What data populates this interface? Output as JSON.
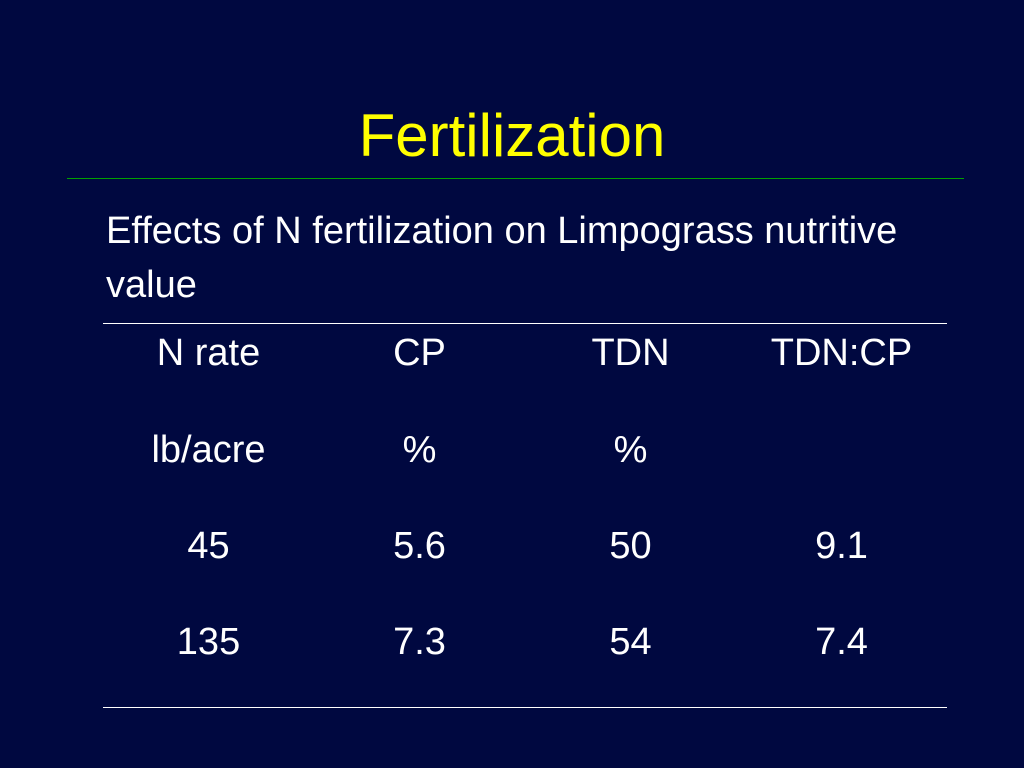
{
  "slide": {
    "title": "Fertilization",
    "subtitle": "Effects of N fertilization on Limpograss nutritive value",
    "colors": {
      "background": "#000840",
      "title": "#ffff00",
      "title_rule": "#00a000",
      "text": "#ffffff"
    }
  },
  "table": {
    "headers": [
      "N rate",
      "CP",
      "TDN",
      "TDN:CP"
    ],
    "units": [
      "lb/acre",
      "%",
      "%",
      ""
    ],
    "rows": [
      [
        "45",
        "5.6",
        "50",
        "9.1"
      ],
      [
        "135",
        "7.3",
        "54",
        "7.4"
      ]
    ]
  }
}
